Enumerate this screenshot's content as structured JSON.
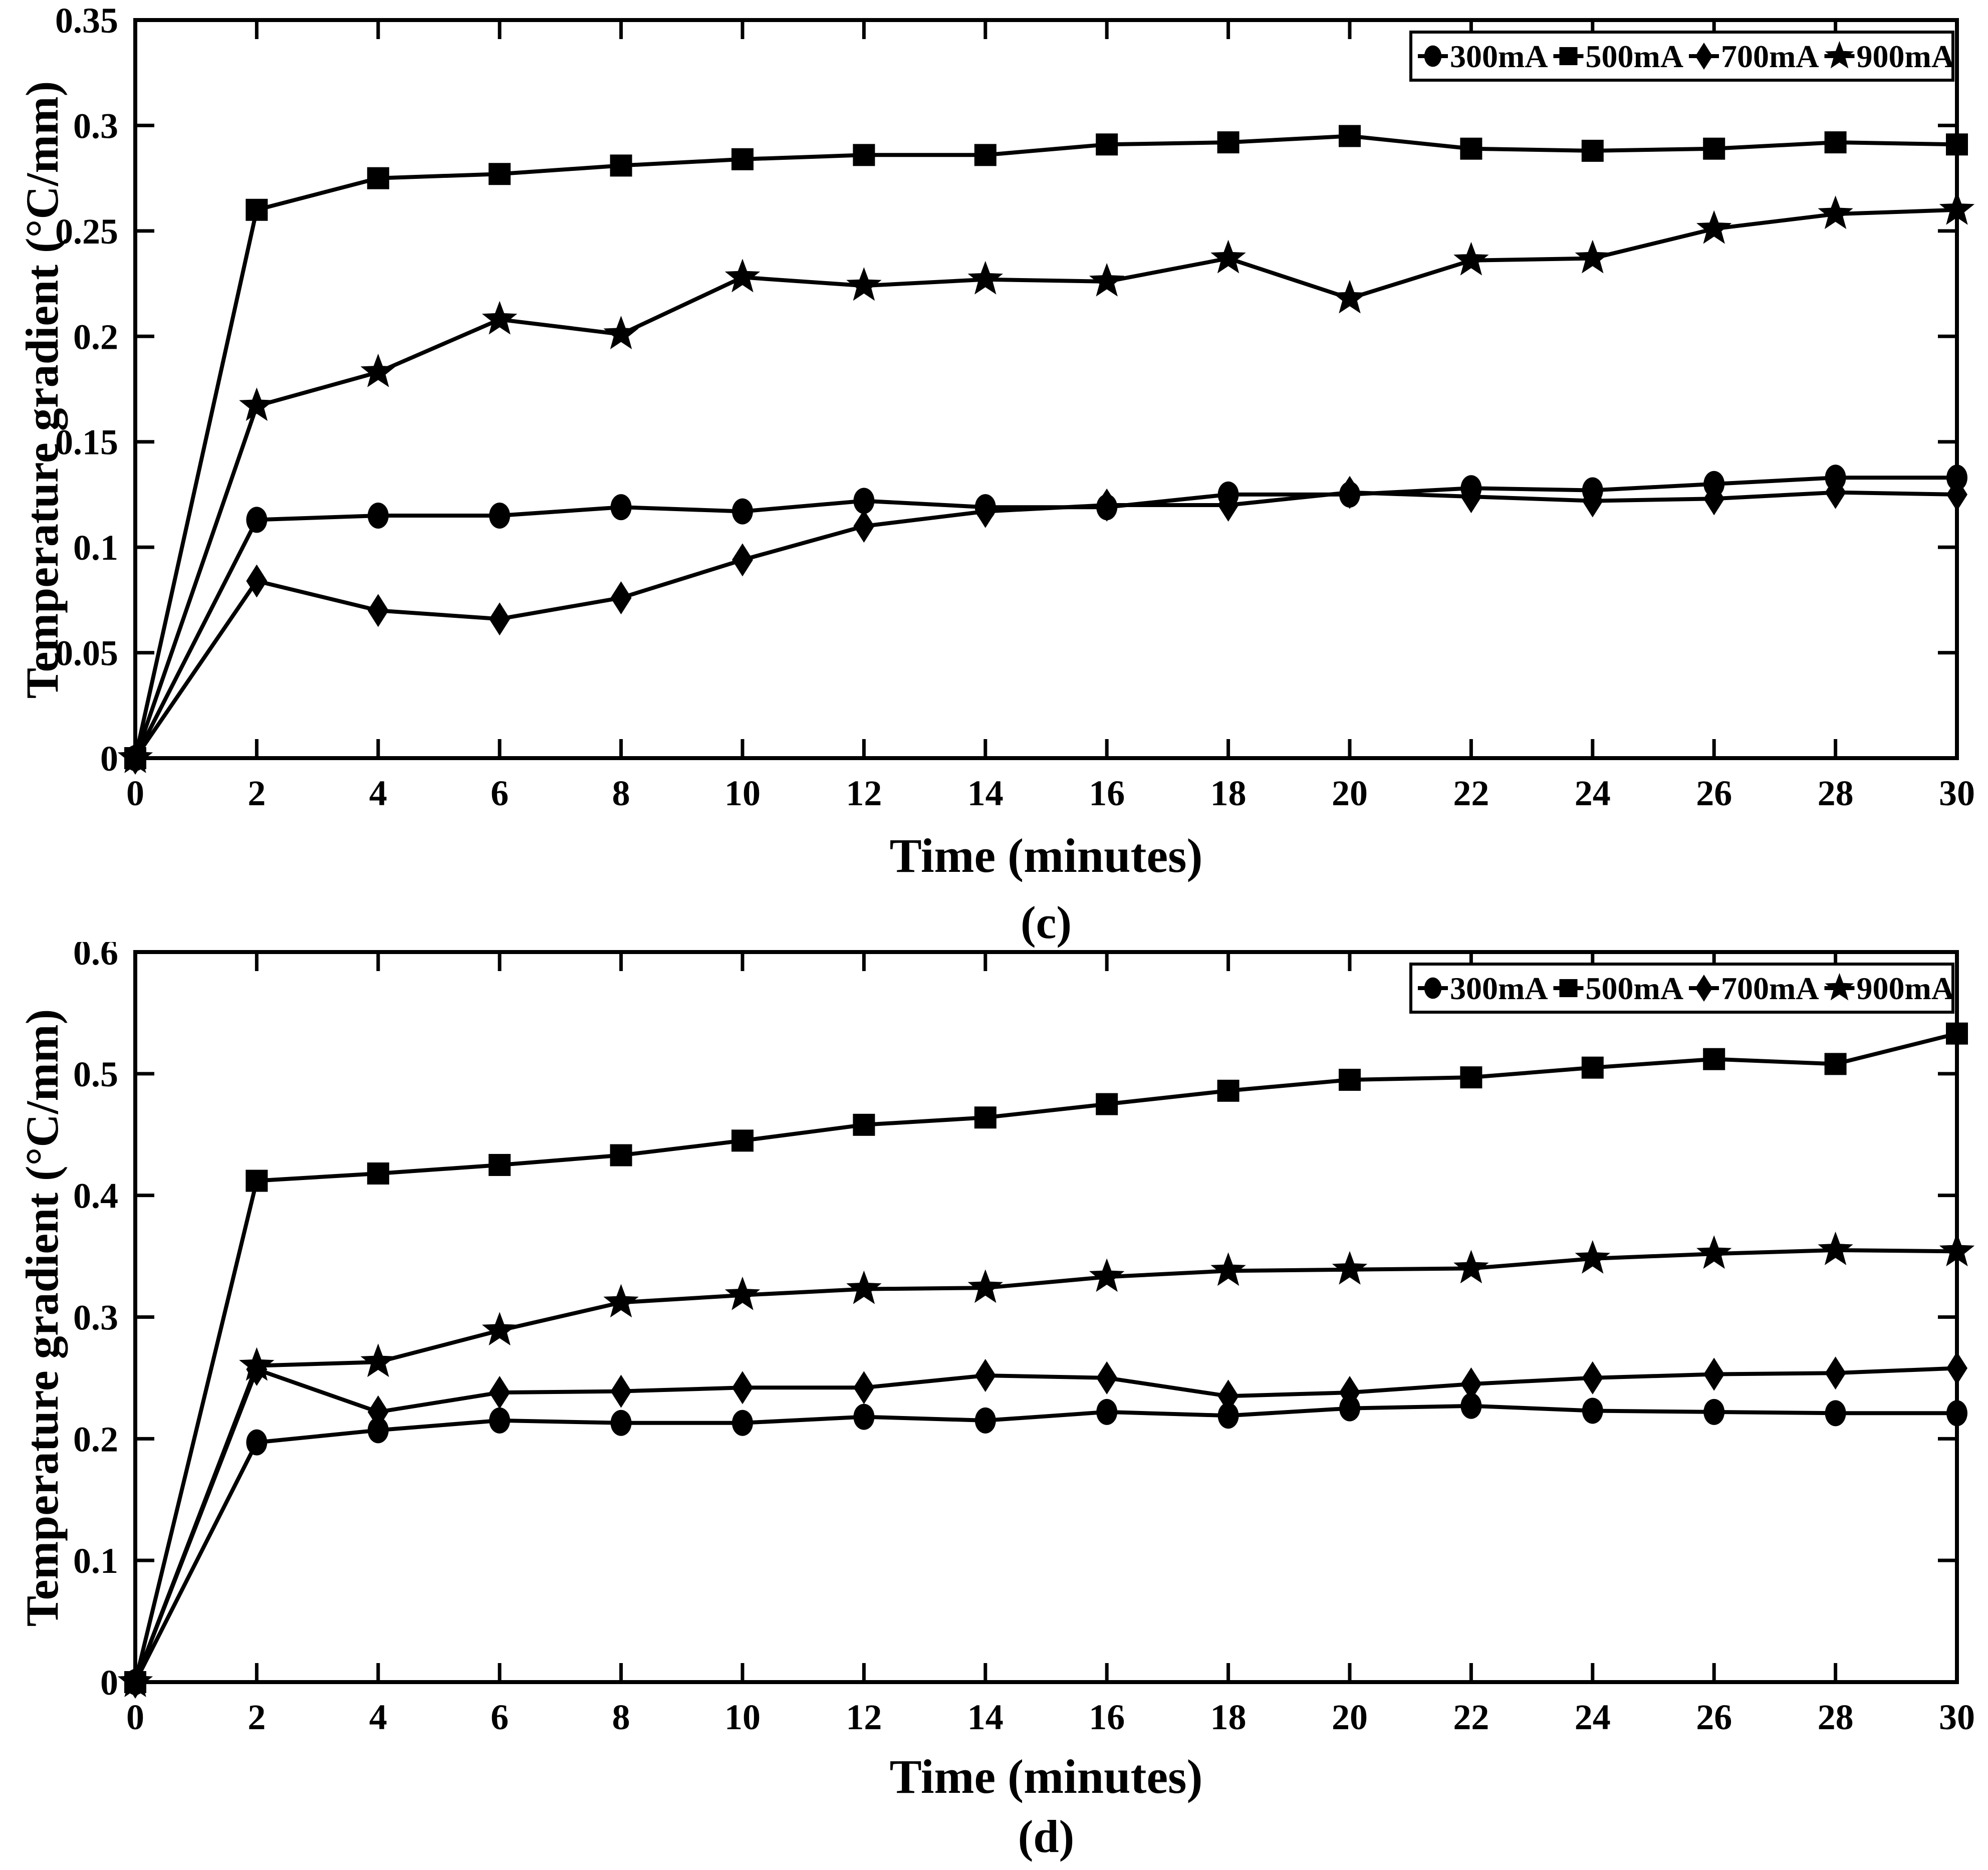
{
  "figure": {
    "background_color": "#ffffff",
    "ink_color": "#000000"
  },
  "chart_data": [
    {
      "id": "c",
      "type": "line",
      "caption": "(c)",
      "xlabel": "Time (minutes)",
      "ylabel": "Temperature gradient (°C/mm)",
      "xlim": [
        0,
        30
      ],
      "ylim": [
        0,
        0.35
      ],
      "grid": false,
      "legend_position": "top-right",
      "x_ticks": [
        0,
        2,
        4,
        6,
        8,
        10,
        12,
        14,
        16,
        18,
        20,
        22,
        24,
        26,
        28,
        30
      ],
      "x_tick_labels": [
        "0",
        "2",
        "4",
        "6",
        "8",
        "10",
        "12",
        "14",
        "16",
        "18",
        "20",
        "22",
        "24",
        "26",
        "28",
        "30"
      ],
      "y_ticks": [
        0,
        0.05,
        0.1,
        0.15,
        0.2,
        0.25,
        0.3,
        0.35
      ],
      "y_tick_labels": [
        "0",
        "0.05",
        "0.1",
        "0.15",
        "0.2",
        "0.25",
        "0.3",
        "0.35"
      ],
      "x": [
        0,
        2,
        4,
        6,
        8,
        10,
        12,
        14,
        16,
        18,
        20,
        22,
        24,
        26,
        28,
        30
      ],
      "series": [
        {
          "name": "300mA",
          "marker": "circle",
          "values": [
            0,
            0.113,
            0.115,
            0.115,
            0.119,
            0.117,
            0.122,
            0.119,
            0.119,
            0.125,
            0.125,
            0.128,
            0.127,
            0.13,
            0.133,
            0.133
          ]
        },
        {
          "name": "500mA",
          "marker": "square",
          "values": [
            0,
            0.26,
            0.275,
            0.277,
            0.281,
            0.284,
            0.286,
            0.286,
            0.291,
            0.292,
            0.295,
            0.289,
            0.288,
            0.289,
            0.292,
            0.291
          ]
        },
        {
          "name": "700mA",
          "marker": "diamond",
          "values": [
            0,
            0.084,
            0.07,
            0.066,
            0.076,
            0.094,
            0.11,
            0.117,
            0.12,
            0.12,
            0.126,
            0.124,
            0.122,
            0.123,
            0.126,
            0.125
          ]
        },
        {
          "name": "900mA",
          "marker": "star",
          "values": [
            0,
            0.167,
            0.183,
            0.208,
            0.201,
            0.228,
            0.224,
            0.227,
            0.226,
            0.237,
            0.218,
            0.236,
            0.237,
            0.251,
            0.258,
            0.26
          ]
        }
      ]
    },
    {
      "id": "d",
      "type": "line",
      "caption": "(d)",
      "xlabel": "Time (minutes)",
      "ylabel": "Temperature gradient (°C/mm)",
      "xlim": [
        0,
        30
      ],
      "ylim": [
        0,
        0.6
      ],
      "grid": false,
      "legend_position": "top-right",
      "x_ticks": [
        0,
        2,
        4,
        6,
        8,
        10,
        12,
        14,
        16,
        18,
        20,
        22,
        24,
        26,
        28,
        30
      ],
      "x_tick_labels": [
        "0",
        "2",
        "4",
        "6",
        "8",
        "10",
        "12",
        "14",
        "16",
        "18",
        "20",
        "22",
        "24",
        "26",
        "28",
        "30"
      ],
      "y_ticks": [
        0,
        0.1,
        0.2,
        0.3,
        0.4,
        0.5,
        0.6
      ],
      "y_tick_labels": [
        "0",
        "0.1",
        "0.2",
        "0.3",
        "0.4",
        "0.5",
        "0.6"
      ],
      "x": [
        0,
        2,
        4,
        6,
        8,
        10,
        12,
        14,
        16,
        18,
        20,
        22,
        24,
        26,
        28,
        30
      ],
      "series": [
        {
          "name": "300mA",
          "marker": "circle",
          "values": [
            0,
            0.197,
            0.207,
            0.215,
            0.213,
            0.213,
            0.218,
            0.215,
            0.222,
            0.219,
            0.225,
            0.227,
            0.223,
            0.222,
            0.221,
            0.221
          ]
        },
        {
          "name": "500mA",
          "marker": "square",
          "values": [
            0,
            0.412,
            0.418,
            0.425,
            0.433,
            0.445,
            0.458,
            0.464,
            0.475,
            0.486,
            0.495,
            0.497,
            0.505,
            0.512,
            0.508,
            0.533
          ]
        },
        {
          "name": "700mA",
          "marker": "diamond",
          "values": [
            0,
            0.257,
            0.222,
            0.238,
            0.239,
            0.242,
            0.242,
            0.252,
            0.25,
            0.235,
            0.238,
            0.245,
            0.25,
            0.253,
            0.254,
            0.258
          ]
        },
        {
          "name": "900mA",
          "marker": "star",
          "values": [
            0,
            0.26,
            0.263,
            0.289,
            0.312,
            0.318,
            0.323,
            0.324,
            0.333,
            0.338,
            0.339,
            0.34,
            0.348,
            0.352,
            0.355,
            0.354
          ]
        }
      ]
    }
  ]
}
